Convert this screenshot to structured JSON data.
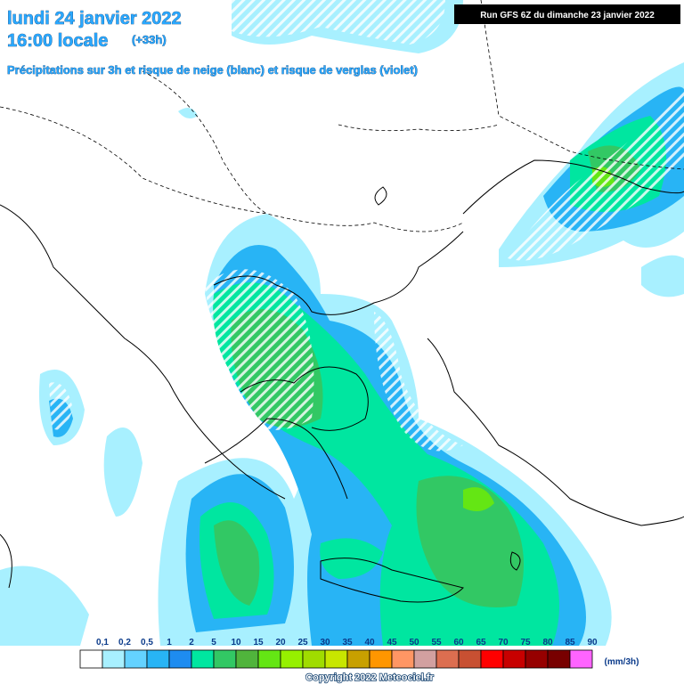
{
  "header": {
    "title": "lundi 24 janvier 2022",
    "time": "16:00 locale",
    "lead": "(+33h)",
    "subtitle": "Précipitations sur 3h et risque de neige (blanc) et risque de verglas (violet)"
  },
  "run": "Run GFS 6Z du dimanche 23 janvier 2022",
  "legend": {
    "labels": [
      "0,1",
      "0,2",
      "0,5",
      "1",
      "2",
      "5",
      "10",
      "15",
      "20",
      "25",
      "30",
      "35",
      "40",
      "45",
      "50",
      "55",
      "60",
      "65",
      "70",
      "75",
      "80",
      "85",
      "90"
    ],
    "colors": [
      "#ffffff",
      "#a8f0ff",
      "#64d2ff",
      "#28b4f5",
      "#1e8cf0",
      "#00e6a0",
      "#32c864",
      "#50b43c",
      "#64e614",
      "#96f000",
      "#a0dc00",
      "#c8e600",
      "#c8a000",
      "#ff9600",
      "#ff9664",
      "#d2a0a0",
      "#dc6e50",
      "#c85032",
      "#ff0000",
      "#c80000",
      "#960000",
      "#780000",
      "#ff64ff"
    ],
    "unit": "(mm/3h)"
  },
  "footer": "Copyright 2022 Meteociel.fr"
}
